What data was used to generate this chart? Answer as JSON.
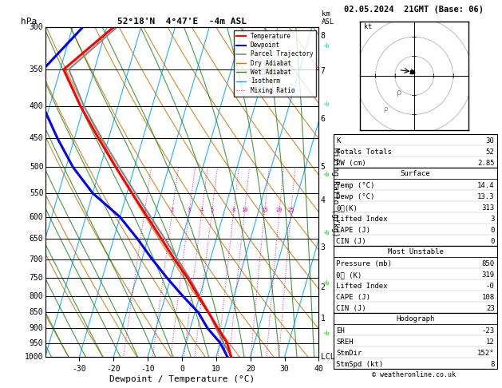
{
  "title_left": "52°18'N  4°47'E  -4m ASL",
  "title_right": "02.05.2024  21GMT (Base: 06)",
  "xlabel": "Dewpoint / Temperature (°C)",
  "ylabel_left": "hPa",
  "ylabel_right2": "Mixing Ratio (g/kg)",
  "pressure_levels": [
    300,
    350,
    400,
    450,
    500,
    550,
    600,
    650,
    700,
    750,
    800,
    850,
    900,
    950,
    1000
  ],
  "xlim": [
    -40,
    40
  ],
  "ylim_p": [
    1000,
    300
  ],
  "isotherm_color": "#00aaff",
  "dry_adiabat_color": "#cc7700",
  "wet_adiabat_color": "#228b22",
  "mixing_ratio_color": "#dd00aa",
  "temperature_color": "#ff0000",
  "dewpoint_color": "#0000ff",
  "parcel_color": "#888888",
  "background_color": "#ffffff",
  "temp_profile_p": [
    1000,
    950,
    900,
    850,
    800,
    750,
    700,
    650,
    600,
    550,
    500,
    450,
    400,
    350,
    300
  ],
  "temp_profile_t": [
    14.4,
    12.0,
    8.0,
    4.0,
    -0.5,
    -5.0,
    -10.5,
    -16.0,
    -22.0,
    -28.5,
    -35.5,
    -43.0,
    -51.0,
    -59.0,
    -48.0
  ],
  "dewp_profile_p": [
    1000,
    950,
    900,
    850,
    800,
    750,
    700,
    650,
    600,
    550,
    500,
    450,
    400,
    350,
    300
  ],
  "dewp_profile_t": [
    13.3,
    10.0,
    5.0,
    1.0,
    -5.0,
    -11.0,
    -17.0,
    -23.0,
    -30.0,
    -40.0,
    -48.0,
    -55.0,
    -62.0,
    -65.0,
    -57.0
  ],
  "parcel_profile_p": [
    1000,
    950,
    900,
    850,
    800,
    750,
    700,
    650,
    600,
    550,
    500,
    450,
    400,
    350,
    300
  ],
  "parcel_profile_t": [
    14.4,
    11.0,
    7.5,
    4.0,
    0.0,
    -4.5,
    -9.5,
    -15.0,
    -21.0,
    -27.5,
    -34.5,
    -42.0,
    -50.0,
    -57.5,
    -47.0
  ],
  "mr_values": [
    1,
    2,
    3,
    4,
    5,
    8,
    10,
    15,
    20,
    25
  ],
  "stats": {
    "K": 30,
    "Totals Totals": 52,
    "PW (cm)": 2.85,
    "Surface": {
      "Temp (C)": 14.4,
      "Dewp (C)": 13.3,
      "theta_e (K)": 313,
      "Lifted Index": 3,
      "CAPE (J)": 0,
      "CIN (J)": 0
    },
    "Most Unstable": {
      "Pressure (mb)": 850,
      "theta_e (K)": 319,
      "Lifted Index": "-0",
      "CAPE (J)": 108,
      "CIN (J)": 23
    },
    "Hodograph": {
      "EH": -23,
      "SREH": 12,
      "StmDir": "152°",
      "StmSpd (kt)": 8
    }
  },
  "copyright": "© weatheronline.co.uk",
  "cyan_color": "#00cccc",
  "green_color": "#00cc00",
  "skew": 28.0
}
